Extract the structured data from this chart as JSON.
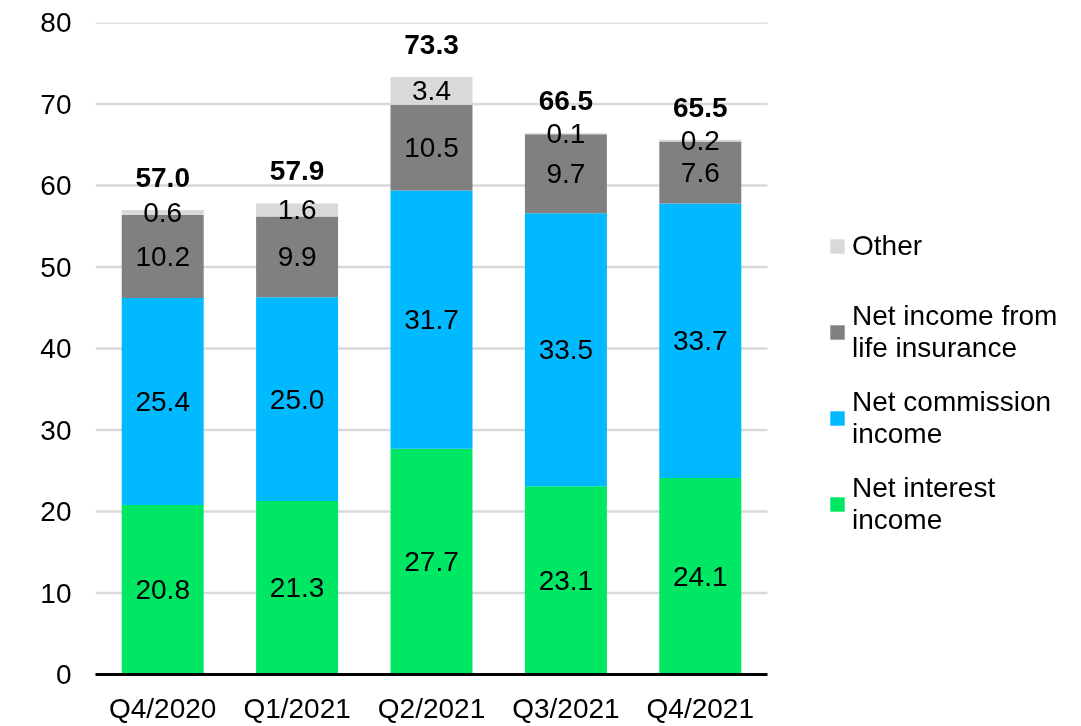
{
  "chart_data": {
    "type": "bar",
    "stacked": true,
    "categories": [
      "Q4/2020",
      "Q1/2021",
      "Q2/2021",
      "Q3/2021",
      "Q4/2021"
    ],
    "series": [
      {
        "name": "Net interest income",
        "color": "#00e763",
        "values": [
          20.8,
          21.3,
          27.7,
          23.1,
          24.1
        ],
        "value_labels": [
          "20.8",
          "21.3",
          "27.7",
          "23.1",
          "24.1"
        ]
      },
      {
        "name": "Net commission income",
        "color": "#00b9ff",
        "values": [
          25.4,
          25.0,
          31.7,
          33.5,
          33.7
        ],
        "value_labels": [
          "25.4",
          "25.0",
          "31.7",
          "33.5",
          "33.7"
        ]
      },
      {
        "name": "Net income from life insurance",
        "color": "#808080",
        "values": [
          10.2,
          9.9,
          10.5,
          9.7,
          7.6
        ],
        "value_labels": [
          "10.2",
          "9.9",
          "10.5",
          "9.7",
          "7.6"
        ]
      },
      {
        "name": "Other",
        "color": "#d9d9d9",
        "values": [
          0.6,
          1.6,
          3.4,
          0.1,
          0.2
        ],
        "value_labels": [
          "0.6",
          "1.6",
          "3.4",
          "0.1",
          "0.2"
        ]
      }
    ],
    "totals": [
      "57.0",
      "57.9",
      "73.3",
      "66.5",
      "65.5"
    ],
    "ylim": [
      0,
      80
    ],
    "yticks": [
      0,
      10,
      20,
      30,
      40,
      50,
      60,
      70,
      80
    ],
    "grid": "y",
    "legend": "right"
  }
}
